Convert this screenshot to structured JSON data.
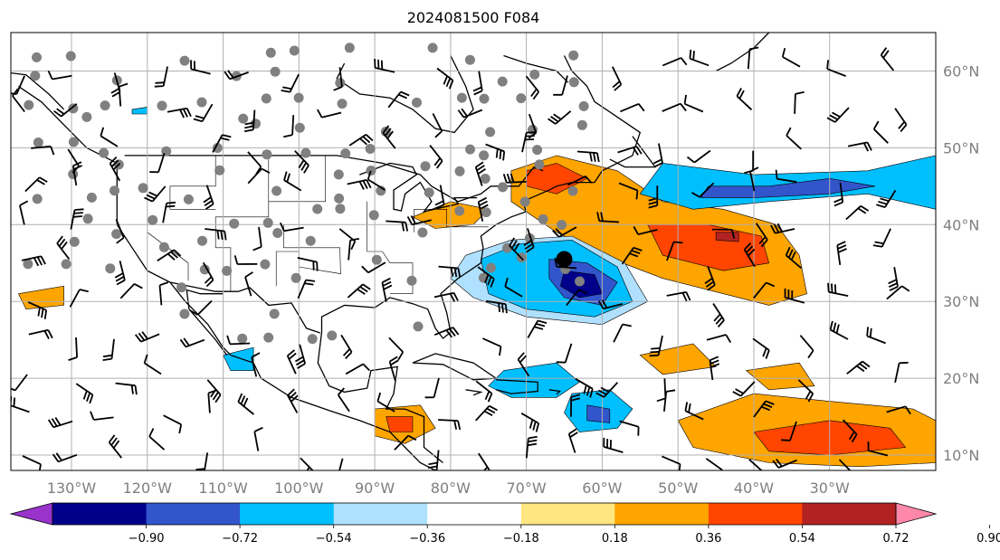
{
  "title": "2024081500 F084",
  "map": {
    "lon_range": [
      -138,
      -16
    ],
    "lat_range": [
      8,
      65
    ],
    "lat_ticks": [
      {
        "value": 60,
        "label": "60°N"
      },
      {
        "value": 50,
        "label": "50°N"
      },
      {
        "value": 40,
        "label": "40°N"
      },
      {
        "value": 30,
        "label": "30°N"
      },
      {
        "value": 20,
        "label": "20°N"
      },
      {
        "value": 10,
        "label": "10°N"
      }
    ],
    "lon_ticks": [
      {
        "value": -130,
        "label": "130°W"
      },
      {
        "value": -120,
        "label": "120°W"
      },
      {
        "value": -110,
        "label": "110°W"
      },
      {
        "value": -100,
        "label": "100°W"
      },
      {
        "value": -90,
        "label": "90°W"
      },
      {
        "value": -80,
        "label": "80°W"
      },
      {
        "value": -70,
        "label": "70°W"
      },
      {
        "value": -60,
        "label": "60°W"
      },
      {
        "value": -50,
        "label": "50°W"
      },
      {
        "value": -40,
        "label": "40°W"
      },
      {
        "value": -30,
        "label": "30°W"
      }
    ],
    "gridlines": true,
    "marked_point": {
      "lon": -65,
      "lat": 35.5
    }
  },
  "colorbar": {
    "ticks": [
      "−0.90",
      "−0.72",
      "−0.54",
      "−0.36",
      "−0.18",
      "0.18",
      "0.36",
      "0.54",
      "0.72",
      "0.90"
    ],
    "colors": [
      "#9933cc",
      "#00008b",
      "#3355cc",
      "#00bfff",
      "#b0e0ff",
      "#ffffff",
      "#ffe680",
      "#ffa500",
      "#ff4500",
      "#b22222",
      "#ff88aa"
    ],
    "extend": "both"
  }
}
